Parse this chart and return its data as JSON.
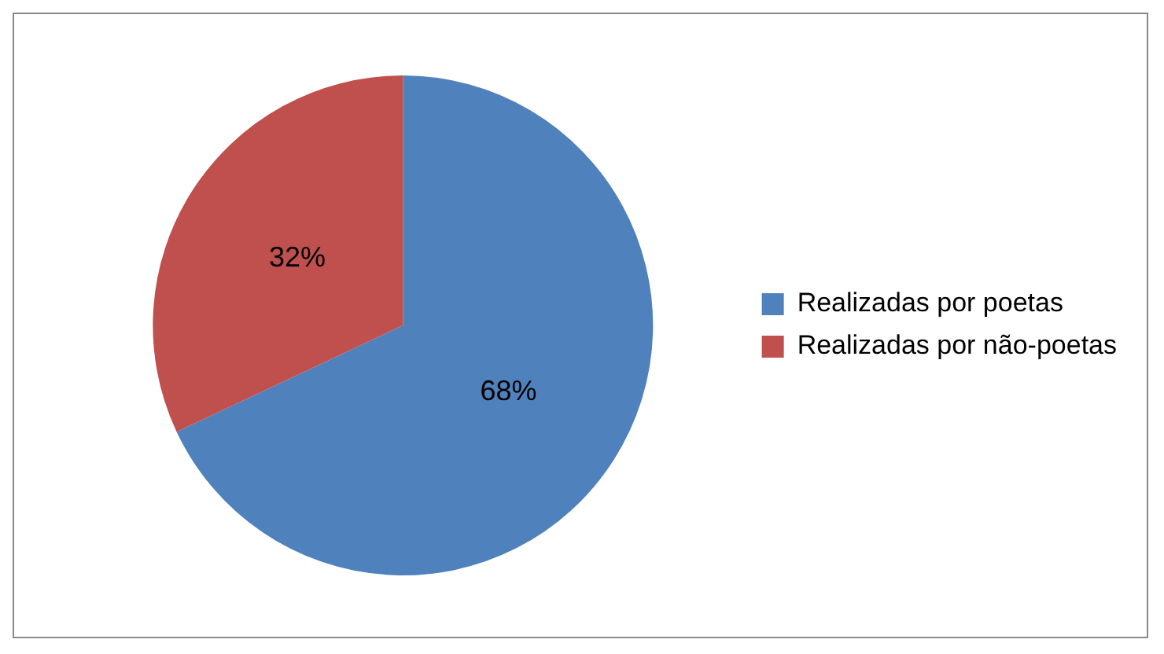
{
  "chart_data": {
    "type": "pie",
    "categories": [
      "Realizadas por poetas",
      "Realizadas por não-poetas"
    ],
    "values": [
      68,
      32
    ],
    "colors": [
      "#4f81bd",
      "#c0504d"
    ],
    "value_labels": [
      "68%",
      "32%"
    ],
    "legend": "right"
  }
}
